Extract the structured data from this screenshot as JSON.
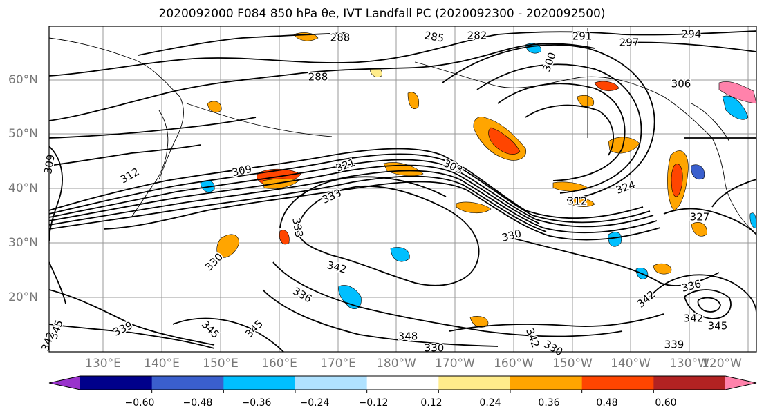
{
  "title": "2020092000 F084 850 hPa θe, IVT Landfall PC (2020092300 - 2020092500)",
  "map": {
    "lat_labels": [
      "60°N",
      "50°N",
      "40°N",
      "30°N",
      "20°N"
    ],
    "lon_labels": [
      "130°E",
      "140°E",
      "150°E",
      "160°E",
      "170°E",
      "180°W",
      "170°W",
      "160°W",
      "150°W",
      "140°W",
      "130°W",
      "120°W"
    ],
    "contour_labels": [
      "288",
      "285",
      "282",
      "291",
      "297",
      "294",
      "300",
      "288",
      "306",
      "309",
      "309",
      "321",
      "303",
      "312",
      "333",
      "333",
      "312",
      "324",
      "327",
      "330",
      "330",
      "342",
      "336",
      "339",
      "345",
      "345",
      "345",
      "348",
      "330",
      "342",
      "330",
      "336",
      "342",
      "342",
      "345",
      "339",
      "342"
    ],
    "contour_color": "#000000",
    "grid": true
  },
  "colorbar": {
    "ticks": [
      "−0.60",
      "−0.48",
      "−0.36",
      "−0.24",
      "−0.12",
      "0.12",
      "0.24",
      "0.36",
      "0.48",
      "0.60"
    ],
    "colors": [
      "#9932cc",
      "#00008b",
      "#3a5fcd",
      "#00bfff",
      "#b0e2ff",
      "#ffffff",
      "#ffec8b",
      "#ffa500",
      "#ff4500",
      "#b22222",
      "#ff82ab"
    ]
  }
}
